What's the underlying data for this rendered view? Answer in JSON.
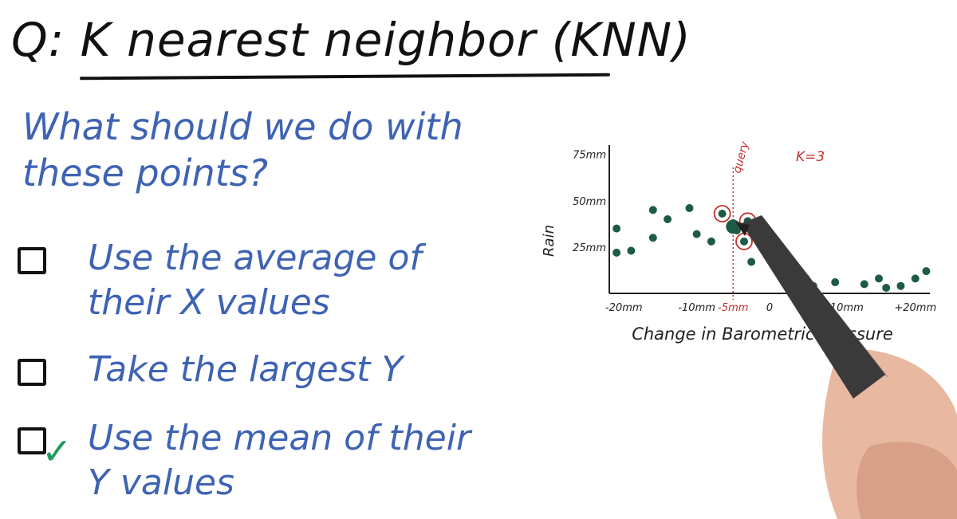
{
  "title": "Q: K nearest neighbor (KNN)",
  "question": "What should we do with these points?",
  "options": [
    {
      "text": "Use the average of\ntheir X values",
      "checked": false
    },
    {
      "text": "Take the largest Y",
      "checked": false
    },
    {
      "text": "Use the mean of their\nY values",
      "checked": true
    }
  ],
  "check_mark": "✓",
  "chart_data": {
    "type": "scatter",
    "xlabel": "Change in Barometric pressure",
    "ylabel": "Rain",
    "x_ticks": [
      "-20mm",
      "-10mm",
      "-5mm",
      "0",
      "+10mm",
      "+20mm"
    ],
    "y_ticks": [
      "25mm",
      "50mm",
      "75mm"
    ],
    "annotation_query": "query",
    "annotation_k": "K=3",
    "xlim": [
      -22,
      22
    ],
    "ylim": [
      0,
      80
    ],
    "query_x": -5,
    "points": [
      {
        "x": -21,
        "y": 35
      },
      {
        "x": -21,
        "y": 22
      },
      {
        "x": -19,
        "y": 23
      },
      {
        "x": -16,
        "y": 45
      },
      {
        "x": -16,
        "y": 30
      },
      {
        "x": -14,
        "y": 40
      },
      {
        "x": -11,
        "y": 46
      },
      {
        "x": -10,
        "y": 32
      },
      {
        "x": -8,
        "y": 28
      },
      {
        "x": -6.5,
        "y": 43
      },
      {
        "x": -4.5,
        "y": 34
      },
      {
        "x": -3,
        "y": 39
      },
      {
        "x": -3.5,
        "y": 28
      },
      {
        "x": -1,
        "y": 27
      },
      {
        "x": -2.5,
        "y": 17
      },
      {
        "x": 0.5,
        "y": 16
      },
      {
        "x": 2.5,
        "y": 15
      },
      {
        "x": 3,
        "y": 7
      },
      {
        "x": 5,
        "y": 8
      },
      {
        "x": 6,
        "y": 4
      },
      {
        "x": 9,
        "y": 6
      },
      {
        "x": 13,
        "y": 5
      },
      {
        "x": 15,
        "y": 8
      },
      {
        "x": 16,
        "y": 3
      },
      {
        "x": 18,
        "y": 4
      },
      {
        "x": 20,
        "y": 8
      },
      {
        "x": 21.5,
        "y": 12
      }
    ],
    "neighbors": [
      {
        "x": -6.5,
        "y": 43
      },
      {
        "x": -3,
        "y": 39
      },
      {
        "x": -3.5,
        "y": 28
      }
    ],
    "colors": {
      "points": "#1e5b47",
      "annotation": "#c4302b",
      "axis": "#222222"
    }
  }
}
